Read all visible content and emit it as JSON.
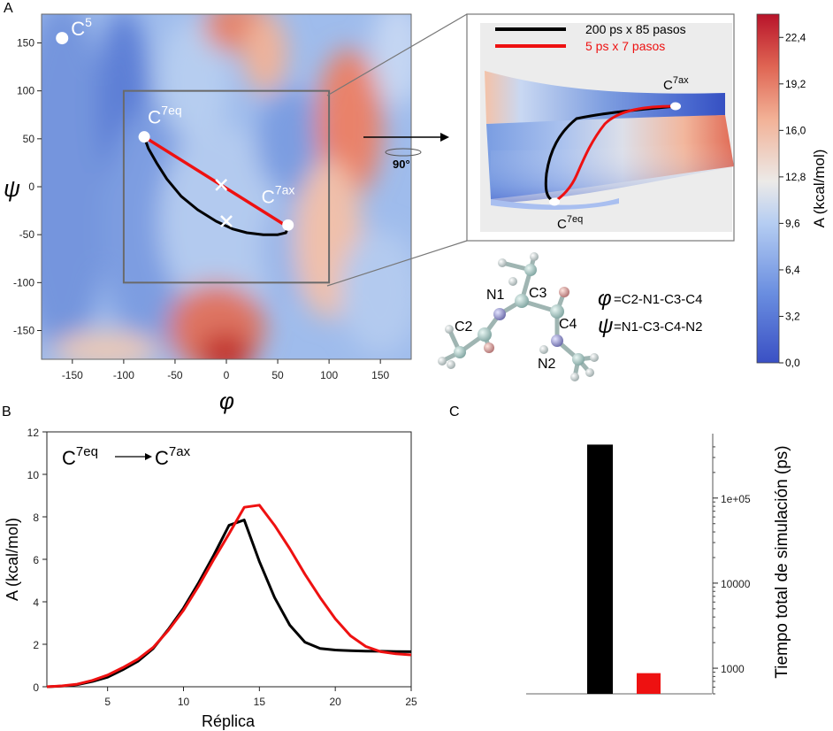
{
  "panel_labels": {
    "a": "A",
    "b": "B",
    "c": "C"
  },
  "colors": {
    "black_path": "#000000",
    "red_path": "#ee1111",
    "cmap_low": "#3a55c6",
    "cmap_mid": "#ecebe9",
    "cmap_high": "#c41f2c"
  },
  "chart_data": [
    {
      "id": "A",
      "type": "heatmap",
      "title": "",
      "xlabel": "φ",
      "ylabel": "ψ",
      "xlim": [
        -180,
        180
      ],
      "ylim": [
        -180,
        180
      ],
      "xticks": [
        -150,
        -100,
        -50,
        0,
        50,
        100,
        150
      ],
      "yticks": [
        -150,
        -100,
        -50,
        0,
        50,
        100,
        150
      ],
      "colorbar": {
        "label": "A (kcal/mol)",
        "range": [
          0,
          24
        ],
        "ticks": [
          "0,0",
          "3,2",
          "6,4",
          "9,6",
          "12,8",
          "16,0",
          "19,2",
          "22,4"
        ],
        "tick_values": [
          0,
          3.2,
          6.4,
          9.6,
          12.8,
          16.0,
          19.2,
          22.4
        ]
      },
      "states": [
        {
          "name": "C",
          "sup": "5",
          "phi": -160,
          "psi": 155
        },
        {
          "name": "C",
          "sup": "7eq",
          "phi": -80,
          "psi": 52
        },
        {
          "name": "C",
          "sup": "7ax",
          "phi": 60,
          "psi": -40
        }
      ],
      "zoom_box": {
        "phi": [
          -100,
          100
        ],
        "psi": [
          -100,
          100
        ]
      },
      "markers": [
        {
          "phi": -5,
          "psi": 2
        },
        {
          "phi": 0,
          "psi": -36
        }
      ],
      "series": [
        {
          "name": "200 ps x 85 pasos",
          "color": "#000000",
          "points": [
            [
              -80,
              52
            ],
            [
              -76,
              40
            ],
            [
              -68,
              25
            ],
            [
              -58,
              8
            ],
            [
              -44,
              -10
            ],
            [
              -28,
              -24
            ],
            [
              -10,
              -36
            ],
            [
              6,
              -44
            ],
            [
              20,
              -48
            ],
            [
              36,
              -50
            ],
            [
              50,
              -50
            ],
            [
              58,
              -48
            ],
            [
              60,
              -42
            ]
          ]
        },
        {
          "name": "5 ps x 7 pasos",
          "color": "#ee1111",
          "points": [
            [
              -80,
              52
            ],
            [
              60,
              -42
            ]
          ]
        }
      ],
      "rotation_label": "90°",
      "legend": [
        "200 ps x 85 pasos",
        "5 ps x 7 pasos"
      ],
      "inset_states": [
        {
          "name": "C",
          "sup": "7ax"
        },
        {
          "name": "C",
          "sup": "7eq"
        }
      ],
      "molecule": {
        "atoms": [
          "N1",
          "C2",
          "C3",
          "C4",
          "N2"
        ],
        "phi_def": "=C2-N1-C3-C4",
        "psi_def": "=N1-C3-C4-N2",
        "phi_symbol": "φ",
        "psi_symbol": "ψ"
      }
    },
    {
      "id": "B",
      "type": "line",
      "title": "",
      "xlabel": "Réplica",
      "ylabel": "A (kcal/mol)",
      "xlim": [
        1,
        25
      ],
      "ylim": [
        0,
        12
      ],
      "xticks": [
        5,
        10,
        15,
        20,
        25
      ],
      "yticks": [
        0,
        2,
        4,
        6,
        8,
        10,
        12
      ],
      "annotation": {
        "from": "C",
        "from_sup": "7eq",
        "to": "C",
        "to_sup": "7ax"
      },
      "x": [
        1,
        2,
        3,
        4,
        5,
        6,
        7,
        8,
        9,
        10,
        11,
        12,
        13,
        14,
        15,
        16,
        17,
        18,
        19,
        20,
        21,
        22,
        23,
        24,
        25
      ],
      "series": [
        {
          "color": "#000000",
          "values": [
            0.0,
            0.03,
            0.1,
            0.25,
            0.45,
            0.8,
            1.2,
            1.8,
            2.7,
            3.7,
            4.9,
            6.2,
            7.6,
            7.85,
            5.9,
            4.2,
            2.9,
            2.1,
            1.8,
            1.73,
            1.7,
            1.68,
            1.67,
            1.66,
            1.65
          ]
        },
        {
          "color": "#ee1111",
          "values": [
            0.0,
            0.04,
            0.12,
            0.3,
            0.55,
            0.9,
            1.3,
            1.85,
            2.65,
            3.6,
            4.75,
            6.0,
            7.2,
            8.45,
            8.55,
            7.6,
            6.5,
            5.3,
            4.2,
            3.2,
            2.4,
            1.9,
            1.65,
            1.55,
            1.5
          ]
        }
      ]
    },
    {
      "id": "C",
      "type": "bar",
      "title": "",
      "ylabel": "Tiempo total de simulación (ps)",
      "yscale": "log",
      "ylim": [
        500,
        450000
      ],
      "yticks": [
        1000,
        10000,
        100000
      ],
      "ytick_labels": [
        "1000",
        "10000",
        "1e+05"
      ],
      "categories": [
        "",
        ""
      ],
      "values": [
        425000,
        875
      ],
      "colors": [
        "#000000",
        "#ee1111"
      ]
    }
  ]
}
